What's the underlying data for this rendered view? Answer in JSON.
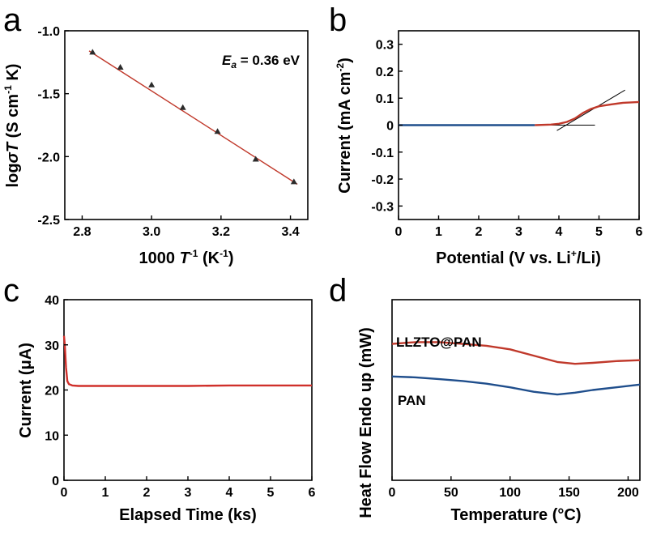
{
  "chart_data": [
    {
      "panel": "a",
      "type": "scatter",
      "xlabel": {
        "prefix": "1000 ",
        "italic": "T",
        "sup": "-1",
        "suffix": " (K",
        "sup2": "-1",
        "end": ")"
      },
      "ylabel": {
        "prefix": "log",
        "italic": "σT",
        "suffix": " (S cm",
        "sup": "-1",
        "mid": " K)"
      },
      "annotation": {
        "italic": "E",
        "sub": "a",
        "rest": " = 0.36 eV"
      },
      "xlim": [
        2.75,
        3.45
      ],
      "ylim": [
        -2.5,
        -1.0
      ],
      "xticks": [
        "2.8",
        "3.0",
        "3.2",
        "3.4"
      ],
      "xtick_values": [
        2.8,
        3.0,
        3.2,
        3.4
      ],
      "yticks": [
        "-1.0",
        "-1.5",
        "-2.0",
        "-2.5"
      ],
      "ytick_values": [
        -1.0,
        -1.5,
        -2.0,
        -2.5
      ],
      "series": [
        {
          "marker": "triangle",
          "x": [
            2.83,
            2.91,
            3.0,
            3.09,
            3.19,
            3.3,
            3.41
          ],
          "y": [
            -1.17,
            -1.29,
            -1.43,
            -1.61,
            -1.8,
            -2.02,
            -2.2
          ]
        }
      ],
      "fit_line": {
        "x": [
          2.82,
          3.42
        ],
        "y": [
          -1.16,
          -2.22
        ]
      },
      "colors": {
        "line": "#c0392b",
        "marker": "#2b2b2b"
      }
    },
    {
      "panel": "b",
      "type": "line",
      "xlabel": {
        "prefix": "Potential (V vs. Li",
        "sup": "+",
        "suffix": "/Li)"
      },
      "ylabel": {
        "prefix": "Current (mA cm",
        "sup": "-2",
        "suffix": ")"
      },
      "xlim": [
        0,
        6
      ],
      "ylim": [
        -0.35,
        0.35
      ],
      "xticks": [
        "0",
        "1",
        "2",
        "3",
        "4",
        "5",
        "6"
      ],
      "xtick_values": [
        0,
        1,
        2,
        3,
        4,
        5,
        6
      ],
      "yticks": [
        "0.3",
        "0.2",
        "0.1",
        "0",
        "-0.1",
        "-0.2",
        "-0.3"
      ],
      "ytick_values": [
        0.3,
        0.2,
        0.1,
        0,
        -0.1,
        -0.2,
        -0.3
      ],
      "series": [
        {
          "color": "#1f4e8c",
          "x": [
            0,
            1,
            2,
            3,
            3.4
          ],
          "y": [
            0,
            0,
            0,
            0,
            0
          ]
        },
        {
          "color": "#c0392b",
          "x": [
            3.4,
            3.8,
            4.0,
            4.2,
            4.4,
            4.6,
            4.8,
            5.0,
            5.3,
            5.6,
            6.0
          ],
          "y": [
            0,
            0.002,
            0.005,
            0.012,
            0.025,
            0.045,
            0.06,
            0.07,
            0.077,
            0.083,
            0.086
          ]
        }
      ],
      "tangent_lines": [
        {
          "x": [
            3.5,
            4.9
          ],
          "y": [
            0,
            0
          ]
        },
        {
          "x": [
            3.95,
            5.65
          ],
          "y": [
            -0.02,
            0.13
          ]
        }
      ]
    },
    {
      "panel": "c",
      "type": "line",
      "xlabel": "Elapsed Time (ks)",
      "ylabel": "Current (μA)",
      "xlim": [
        0,
        6
      ],
      "ylim": [
        0,
        40
      ],
      "xticks": [
        "0",
        "1",
        "2",
        "3",
        "4",
        "5",
        "6"
      ],
      "xtick_values": [
        0,
        1,
        2,
        3,
        4,
        5,
        6
      ],
      "yticks": [
        "40",
        "30",
        "20",
        "10",
        "0"
      ],
      "ytick_values": [
        40,
        30,
        20,
        10,
        0
      ],
      "series": [
        {
          "color": "#d0302b",
          "x": [
            0,
            0.02,
            0.05,
            0.08,
            0.12,
            0.2,
            0.35,
            1,
            2,
            3,
            4,
            5,
            6
          ],
          "y": [
            32,
            30,
            25,
            22,
            21.3,
            21,
            20.9,
            20.9,
            20.9,
            20.9,
            21,
            21,
            21
          ]
        }
      ]
    },
    {
      "panel": "d",
      "type": "line",
      "xlabel": "Temperature (°C)",
      "ylabel": "Heat Flow Endo up (mW)",
      "xlim": [
        0,
        210
      ],
      "ylim": [
        0,
        1
      ],
      "xticks": [
        "0",
        "50",
        "100",
        "150",
        "200"
      ],
      "xtick_values": [
        0,
        50,
        100,
        150,
        200
      ],
      "yticks": [],
      "series": [
        {
          "name": "LLZTO@PAN",
          "color": "#c0392b",
          "x": [
            0,
            20,
            40,
            60,
            80,
            100,
            120,
            140,
            155,
            170,
            190,
            210
          ],
          "y": [
            0.755,
            0.765,
            0.765,
            0.755,
            0.745,
            0.725,
            0.69,
            0.655,
            0.645,
            0.65,
            0.66,
            0.665
          ]
        },
        {
          "name": "PAN",
          "color": "#1f4e8c",
          "x": [
            0,
            20,
            40,
            60,
            80,
            100,
            120,
            140,
            155,
            170,
            190,
            210
          ],
          "y": [
            0.575,
            0.57,
            0.56,
            0.55,
            0.535,
            0.515,
            0.49,
            0.475,
            0.485,
            0.5,
            0.515,
            0.53
          ]
        }
      ]
    }
  ]
}
